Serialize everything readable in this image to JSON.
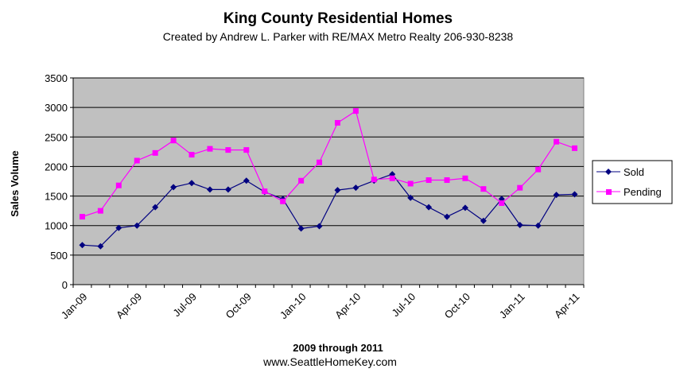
{
  "chart_data": {
    "type": "line",
    "title": "King County Residential Homes",
    "subtitle": "Created by Andrew L. Parker with RE/MAX Metro Realty 206-930-8238",
    "xlabel": "2009 through 2011",
    "ylabel": "Sales Volume",
    "footer": "www.SeattleHomeKey.com",
    "ylim": [
      0,
      3500
    ],
    "yticks": [
      0,
      500,
      1000,
      1500,
      2000,
      2500,
      3000,
      3500
    ],
    "grid": true,
    "legend_position": "right",
    "x_count": 28,
    "xtick_labels": [
      {
        "index": 0,
        "label": "Jan-09"
      },
      {
        "index": 3,
        "label": "Apr-09"
      },
      {
        "index": 6,
        "label": "Jul-09"
      },
      {
        "index": 9,
        "label": "Oct-09"
      },
      {
        "index": 12,
        "label": "Jan-10"
      },
      {
        "index": 15,
        "label": "Apr-10"
      },
      {
        "index": 18,
        "label": "Jul-10"
      },
      {
        "index": 21,
        "label": "Oct-10"
      },
      {
        "index": 24,
        "label": "Jan-11"
      },
      {
        "index": 27,
        "label": "Apr-11"
      }
    ],
    "series": [
      {
        "name": "Sold",
        "color": "#000080",
        "marker": "diamond",
        "values": [
          670,
          650,
          960,
          1000,
          1310,
          1650,
          1720,
          1610,
          1610,
          1760,
          1570,
          1450,
          950,
          990,
          1600,
          1640,
          1760,
          1870,
          1470,
          1310,
          1150,
          1300,
          1080,
          1450,
          1010,
          1000,
          1520,
          1530
        ]
      },
      {
        "name": "Pending",
        "color": "#FF00FF",
        "marker": "square",
        "values": [
          1150,
          1250,
          1680,
          2100,
          2230,
          2440,
          2200,
          2300,
          2280,
          2280,
          1580,
          1410,
          1760,
          2070,
          2740,
          2940,
          1780,
          1800,
          1710,
          1770,
          1770,
          1800,
          1620,
          1380,
          1640,
          1950,
          2420,
          2310
        ]
      }
    ]
  },
  "colors": {
    "plot_background": "#C0C0C0",
    "gridline": "#000000",
    "page_background": "#FFFFFF"
  }
}
